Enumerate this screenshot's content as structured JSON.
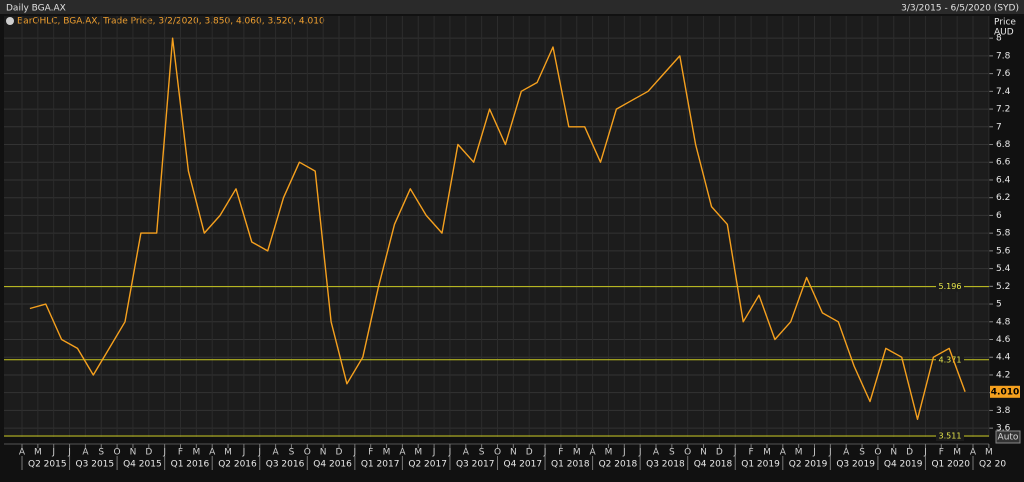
{
  "header": {
    "title": "Daily BGA.AX",
    "range": "3/3/2015 - 6/5/2020 (SYD)"
  },
  "chart_data": {
    "type": "line",
    "legend": "BarOHLC, BGA.AX, Trade Price, 3/2/2020, 3.850, 4.060, 3.520, 4.010",
    "y_label": [
      "Price",
      "AUD"
    ],
    "categories": [
      "A",
      "M",
      "J",
      "J",
      "A",
      "S",
      "O",
      "N",
      "D",
      "J",
      "F",
      "M",
      "A",
      "M",
      "J",
      "J",
      "A",
      "S",
      "O",
      "N",
      "D",
      "J",
      "F",
      "M",
      "A",
      "M",
      "J",
      "J",
      "A",
      "S",
      "O",
      "N",
      "D",
      "J",
      "F",
      "M",
      "A",
      "M",
      "J",
      "J",
      "A",
      "S",
      "O",
      "N",
      "D",
      "J",
      "F",
      "M",
      "A",
      "M",
      "J",
      "J",
      "A",
      "S",
      "O",
      "N",
      "D",
      "J",
      "F",
      "M",
      "A",
      "M"
    ],
    "quarters": [
      "Q2 2015",
      "Q3 2015",
      "Q4 2015",
      "Q1 2016",
      "Q2 2016",
      "Q3 2016",
      "Q4 2016",
      "Q1 2017",
      "Q2 2017",
      "Q3 2017",
      "Q4 2017",
      "Q1 2018",
      "Q2 2018",
      "Q3 2018",
      "Q4 2018",
      "Q1 2019",
      "Q2 2019",
      "Q3 2019",
      "Q4 2019",
      "Q1 2020",
      "Q2 20"
    ],
    "series": [
      {
        "name": "BGA.AX",
        "color": "#f5a01e",
        "values": [
          4.95,
          5.0,
          4.6,
          4.5,
          4.2,
          4.5,
          4.8,
          5.8,
          5.8,
          8.0,
          6.5,
          5.8,
          6.0,
          6.3,
          5.7,
          5.6,
          6.2,
          6.6,
          6.5,
          4.8,
          4.1,
          4.4,
          5.2,
          5.9,
          6.3,
          6.0,
          5.8,
          6.8,
          6.6,
          7.2,
          6.8,
          7.4,
          7.5,
          7.9,
          7.0,
          7.0,
          6.6,
          7.2,
          7.3,
          7.4,
          7.6,
          7.8,
          6.8,
          6.1,
          5.9,
          4.8,
          5.1,
          4.6,
          4.8,
          5.3,
          4.9,
          4.8,
          4.3,
          3.9,
          4.5,
          4.4,
          3.7,
          4.4,
          4.5,
          4.01,
          null,
          null
        ]
      }
    ],
    "levels": [
      {
        "value": 5.196,
        "color": "#c8c820"
      },
      {
        "value": 4.371,
        "color": "#c8c820"
      },
      {
        "value": 3.511,
        "color": "#c8c820"
      }
    ],
    "last_price": {
      "value": 4.01,
      "label": "4.010"
    },
    "ylim": [
      3.5,
      8.25
    ],
    "yticks": [
      3.6,
      3.8,
      4,
      4.2,
      4.4,
      4.6,
      4.8,
      5,
      5.2,
      5.4,
      5.6,
      5.8,
      6,
      6.2,
      6.4,
      6.6,
      6.8,
      7,
      7.2,
      7.4,
      7.6,
      7.8,
      8
    ],
    "grid": true,
    "button": "Auto"
  }
}
